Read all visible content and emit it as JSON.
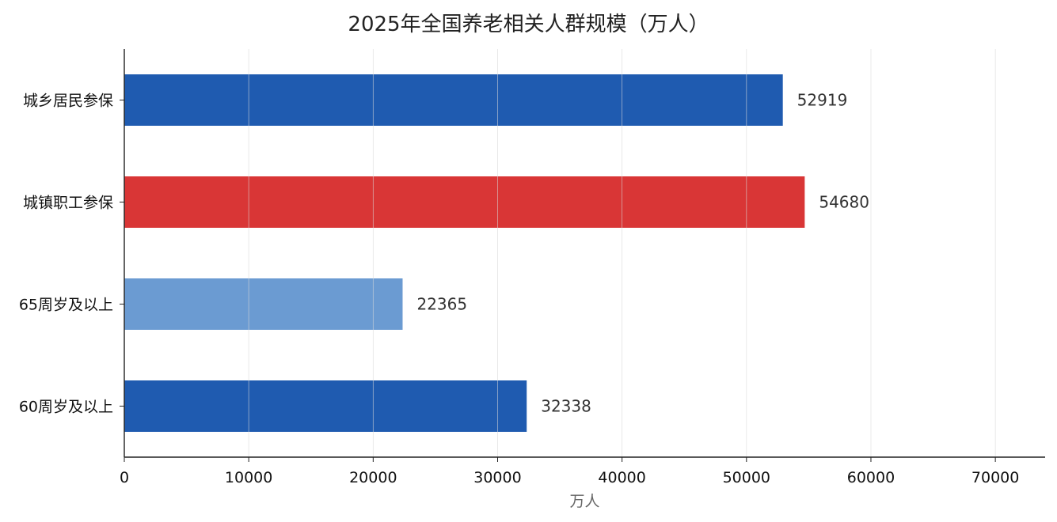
{
  "chart_data": {
    "type": "bar",
    "orientation": "horizontal",
    "title": "2025年全国养老相关人群规模（万人）",
    "xlabel": "万人",
    "ylabel": "",
    "categories": [
      "城乡居民参保",
      "城镇职工参保",
      "65周岁及以上",
      "60周岁及以上"
    ],
    "values": [
      52919,
      54680,
      22365,
      32338
    ],
    "bar_colors": [
      "#1f5bb0",
      "#d93636",
      "#6b9bd2",
      "#1f5bb0"
    ],
    "xlim": [
      0,
      74000
    ],
    "xticks": [
      0,
      10000,
      20000,
      30000,
      40000,
      50000,
      60000,
      70000
    ],
    "data_labels": [
      "52919",
      "54680",
      "22365",
      "32338"
    ],
    "grid": "vertical",
    "legend": "none"
  }
}
